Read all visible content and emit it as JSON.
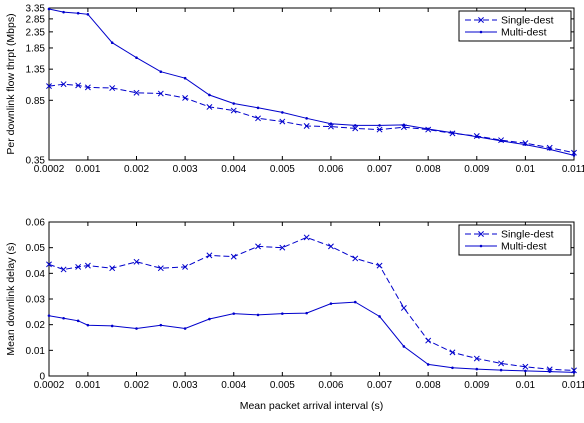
{
  "chart_data": [
    {
      "type": "line",
      "ylabel": "Per downlink flow thrpt (Mbps)",
      "xlabel": "",
      "scale_y": "log",
      "xlim": [
        0.0002,
        0.011
      ],
      "ylim": [
        0.35,
        3.35
      ],
      "x_ticks": [
        "0.0002",
        "0.001",
        "0.002",
        "0.003",
        "0.004",
        "0.005",
        "0.006",
        "0.007",
        "0.008",
        "0.009",
        "0.01",
        "0.011"
      ],
      "y_ticks": [
        "0.35",
        "0.85",
        "1.35",
        "1.85",
        "2.35",
        "2.85",
        "3.35"
      ],
      "y_tick_values": [
        0.35,
        0.85,
        1.35,
        1.85,
        2.35,
        2.85,
        3.35
      ],
      "legend_position": "top-right",
      "x": [
        0.0002,
        0.0005,
        0.0008,
        0.001,
        0.0015,
        0.002,
        0.0025,
        0.003,
        0.0035,
        0.004,
        0.0045,
        0.005,
        0.0055,
        0.006,
        0.0065,
        0.007,
        0.0075,
        0.008,
        0.0085,
        0.009,
        0.0095,
        0.01,
        0.0105,
        0.011
      ],
      "series": [
        {
          "name": "Single-dest",
          "style": "dashed",
          "marker": "x",
          "values": [
            1.05,
            1.08,
            1.06,
            1.03,
            1.02,
            0.95,
            0.94,
            0.88,
            0.77,
            0.73,
            0.65,
            0.62,
            0.58,
            0.575,
            0.56,
            0.55,
            0.57,
            0.55,
            0.52,
            0.5,
            0.47,
            0.45,
            0.42,
            0.39
          ]
        },
        {
          "name": "Multi-dest",
          "style": "solid",
          "marker": "dot",
          "values": [
            3.3,
            3.15,
            3.1,
            3.05,
            2.0,
            1.6,
            1.3,
            1.18,
            0.92,
            0.81,
            0.76,
            0.71,
            0.65,
            0.6,
            0.585,
            0.585,
            0.59,
            0.555,
            0.525,
            0.495,
            0.465,
            0.44,
            0.41,
            0.375
          ]
        }
      ]
    },
    {
      "type": "line",
      "ylabel": "Mean downlink delay (s)",
      "xlabel": "Mean packet arrival interval (s)",
      "xlim": [
        0.0002,
        0.011
      ],
      "ylim": [
        0,
        0.06
      ],
      "x_ticks": [
        "0.0002",
        "0.001",
        "0.002",
        "0.003",
        "0.004",
        "0.005",
        "0.006",
        "0.007",
        "0.008",
        "0.009",
        "0.01",
        "0.011"
      ],
      "y_ticks": [
        "0",
        "0.01",
        "0.02",
        "0.03",
        "0.04",
        "0.05",
        "0.06"
      ],
      "y_tick_values": [
        0,
        0.01,
        0.02,
        0.03,
        0.04,
        0.05,
        0.06
      ],
      "legend_position": "top-right",
      "x": [
        0.0002,
        0.0005,
        0.0008,
        0.001,
        0.0015,
        0.002,
        0.0025,
        0.003,
        0.0035,
        0.004,
        0.0045,
        0.005,
        0.0055,
        0.006,
        0.0065,
        0.007,
        0.0075,
        0.008,
        0.0085,
        0.009,
        0.0095,
        0.01,
        0.0105,
        0.011
      ],
      "series": [
        {
          "name": "Single-dest",
          "style": "dashed",
          "marker": "x",
          "values": [
            0.0435,
            0.0415,
            0.0425,
            0.043,
            0.042,
            0.0445,
            0.042,
            0.0425,
            0.047,
            0.0465,
            0.0505,
            0.05,
            0.054,
            0.0505,
            0.0458,
            0.043,
            0.0265,
            0.0138,
            0.0092,
            0.0068,
            0.0049,
            0.0036,
            0.0026,
            0.0022
          ]
        },
        {
          "name": "Multi-dest",
          "style": "solid",
          "marker": "dot",
          "values": [
            0.0235,
            0.0225,
            0.0215,
            0.0198,
            0.0195,
            0.0185,
            0.0198,
            0.0185,
            0.0222,
            0.0243,
            0.0238,
            0.0243,
            0.0245,
            0.0282,
            0.0288,
            0.0232,
            0.0115,
            0.0045,
            0.0032,
            0.0027,
            0.0023,
            0.002,
            0.0017,
            0.0014
          ]
        }
      ]
    }
  ]
}
